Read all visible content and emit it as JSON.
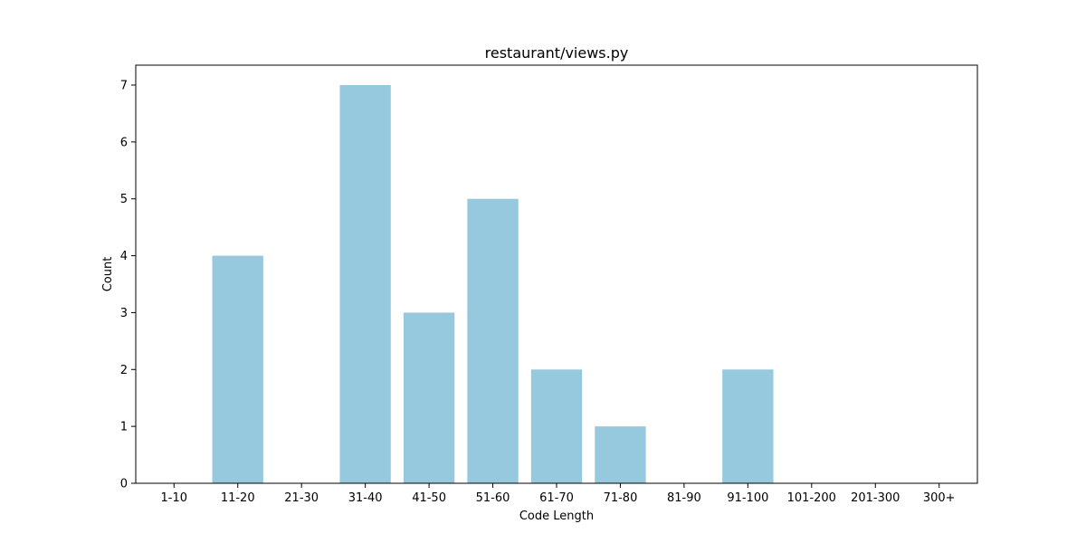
{
  "chart_data": {
    "type": "bar",
    "title": "restaurant/views.py",
    "xlabel": "Code Length",
    "ylabel": "Count",
    "categories": [
      "1-10",
      "11-20",
      "21-30",
      "31-40",
      "41-50",
      "51-60",
      "61-70",
      "71-80",
      "81-90",
      "91-100",
      "101-200",
      "201-300",
      "300+"
    ],
    "values": [
      0,
      4,
      0,
      7,
      3,
      5,
      2,
      1,
      0,
      2,
      0,
      0,
      0
    ],
    "ylim": [
      0,
      7.35
    ],
    "yticks": [
      0,
      1,
      2,
      3,
      4,
      5,
      6,
      7
    ],
    "bar_color": "#96c9dd",
    "grid": false,
    "legend": "none"
  }
}
